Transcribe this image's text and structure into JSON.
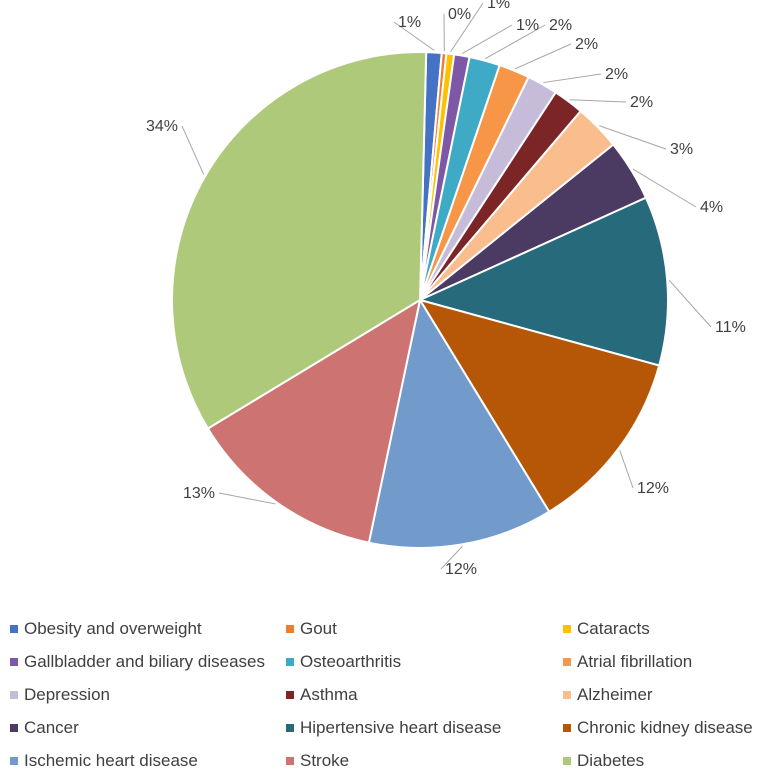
{
  "chart_data": {
    "type": "pie",
    "title": "",
    "legend_position": "bottom",
    "slices": [
      {
        "label": "Obesity and overweight",
        "value": 1,
        "data_label": "1%",
        "color": "#4472C4"
      },
      {
        "label": "Gout",
        "value": 0.3,
        "data_label": "0%",
        "color": "#ED7D31"
      },
      {
        "label": "Cataracts",
        "value": 0.5,
        "data_label": "1%",
        "color": "#FFC000"
      },
      {
        "label": "Gallbladder and biliary diseases",
        "value": 1,
        "data_label": "1%",
        "color": "#7E57A6"
      },
      {
        "label": "Osteoarthritis",
        "value": 2,
        "data_label": "2%",
        "color": "#3FAAC6"
      },
      {
        "label": "Atrial fibrillation",
        "value": 2,
        "data_label": "2%",
        "color": "#F79646"
      },
      {
        "label": "Depression",
        "value": 2,
        "data_label": "2%",
        "color": "#C6BCD9"
      },
      {
        "label": "Asthma",
        "value": 2,
        "data_label": "2%",
        "color": "#7B2527"
      },
      {
        "label": "Alzheimer",
        "value": 3,
        "data_label": "3%",
        "color": "#F9BD8E"
      },
      {
        "label": "Cancer",
        "value": 4,
        "data_label": "4%",
        "color": "#4B3A62"
      },
      {
        "label": "Hipertensive heart disease",
        "value": 11,
        "data_label": "11%",
        "color": "#276A7C"
      },
      {
        "label": "Chronic kidney disease",
        "value": 12,
        "data_label": "12%",
        "color": "#B65708"
      },
      {
        "label": "Ischemic heart disease",
        "value": 12,
        "data_label": "12%",
        "color": "#729ACA"
      },
      {
        "label": "Stroke",
        "value": 13,
        "data_label": "13%",
        "color": "#CD7371"
      },
      {
        "label": "Diabetes",
        "value": 34,
        "data_label": "34%",
        "color": "#AFC97A"
      }
    ],
    "legend": [
      "Obesity and overweight",
      "Gout",
      "Cataracts",
      "Gallbladder and biliary diseases",
      "Osteoarthritis",
      "Atrial fibrillation",
      "Depression",
      "Asthma",
      "Alzheimer",
      "Cancer",
      "Hipertensive heart disease",
      "Chronic kidney disease",
      "Ischemic heart disease",
      "Stroke",
      "Diabetes"
    ]
  }
}
